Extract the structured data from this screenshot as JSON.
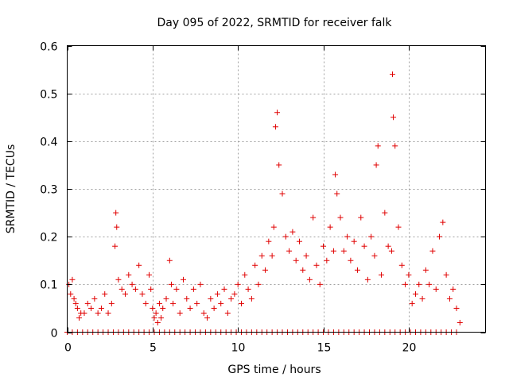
{
  "chart_data": {
    "type": "scatter",
    "title": "Day 095 of 2022, SRMTID for receiver falk",
    "xlabel": "GPS time / hours",
    "ylabel": "SRMTID / TECUs",
    "xlim": [
      0,
      24.5
    ],
    "ylim": [
      0,
      0.6
    ],
    "xticks": [
      0,
      5,
      10,
      15,
      20
    ],
    "xtick_labels": [
      "0",
      "5",
      "10",
      "15",
      "20"
    ],
    "yticks": [
      0,
      0.1,
      0.2,
      0.3,
      0.4,
      0.5,
      0.6
    ],
    "ytick_labels": [
      "0",
      "0.1",
      "0.2",
      "0.3",
      "0.4",
      "0.5",
      "0.6"
    ],
    "grid": true,
    "legend": "none",
    "series": [
      {
        "name": "SRMTID",
        "color": "#e00000",
        "marker": "plus",
        "x": [
          0.1,
          0.2,
          0.3,
          0.4,
          0.5,
          0.6,
          0.7,
          0.8,
          1.0,
          1.2,
          1.4,
          1.6,
          1.8,
          2.0,
          2.2,
          2.4,
          2.6,
          2.8,
          2.85,
          2.9,
          3.0,
          3.2,
          3.4,
          3.6,
          3.8,
          4.0,
          4.2,
          4.4,
          4.6,
          4.8,
          4.9,
          5.0,
          5.1,
          5.2,
          5.3,
          5.4,
          5.5,
          5.6,
          5.8,
          6.0,
          6.1,
          6.2,
          6.4,
          6.6,
          6.8,
          7.0,
          7.2,
          7.4,
          7.6,
          7.8,
          8.0,
          8.2,
          8.4,
          8.6,
          8.8,
          9.0,
          9.2,
          9.4,
          9.6,
          9.8,
          10.0,
          10.2,
          10.4,
          10.6,
          10.8,
          11.0,
          11.2,
          11.4,
          11.6,
          11.8,
          12.0,
          12.1,
          12.2,
          12.3,
          12.4,
          12.6,
          12.8,
          13.0,
          13.2,
          13.4,
          13.6,
          13.8,
          14.0,
          14.2,
          14.4,
          14.6,
          14.8,
          15.0,
          15.2,
          15.4,
          15.6,
          15.7,
          15.8,
          16.0,
          16.2,
          16.4,
          16.6,
          16.8,
          17.0,
          17.2,
          17.4,
          17.6,
          17.8,
          18.0,
          18.1,
          18.2,
          18.4,
          18.6,
          18.8,
          19.0,
          19.05,
          19.1,
          19.2,
          19.4,
          19.6,
          19.8,
          20.0,
          20.2,
          20.4,
          20.6,
          20.8,
          21.0,
          21.2,
          21.4,
          21.6,
          21.8,
          22.0,
          22.2,
          22.4,
          22.6,
          22.8,
          23.0
        ],
        "y": [
          0.1,
          0.08,
          0.11,
          0.07,
          0.06,
          0.05,
          0.03,
          0.04,
          0.04,
          0.06,
          0.05,
          0.07,
          0.04,
          0.05,
          0.08,
          0.04,
          0.06,
          0.18,
          0.25,
          0.22,
          0.11,
          0.09,
          0.08,
          0.12,
          0.1,
          0.09,
          0.14,
          0.08,
          0.06,
          0.12,
          0.09,
          0.05,
          0.03,
          0.04,
          0.02,
          0.06,
          0.03,
          0.05,
          0.07,
          0.15,
          0.1,
          0.06,
          0.09,
          0.04,
          0.11,
          0.07,
          0.05,
          0.09,
          0.06,
          0.1,
          0.04,
          0.03,
          0.07,
          0.05,
          0.08,
          0.06,
          0.09,
          0.04,
          0.07,
          0.08,
          0.1,
          0.06,
          0.12,
          0.09,
          0.07,
          0.14,
          0.1,
          0.16,
          0.13,
          0.19,
          0.16,
          0.22,
          0.43,
          0.46,
          0.35,
          0.29,
          0.2,
          0.17,
          0.21,
          0.15,
          0.19,
          0.13,
          0.16,
          0.11,
          0.24,
          0.14,
          0.1,
          0.18,
          0.15,
          0.22,
          0.17,
          0.33,
          0.29,
          0.24,
          0.17,
          0.2,
          0.15,
          0.19,
          0.13,
          0.24,
          0.18,
          0.11,
          0.2,
          0.16,
          0.35,
          0.39,
          0.12,
          0.25,
          0.18,
          0.17,
          0.54,
          0.45,
          0.39,
          0.22,
          0.14,
          0.1,
          0.12,
          0.06,
          0.08,
          0.1,
          0.07,
          0.13,
          0.1,
          0.17,
          0.09,
          0.2,
          0.23,
          0.12,
          0.07,
          0.09,
          0.05,
          0.02
        ],
        "zero_x": [
          0.0,
          0.3,
          0.6,
          0.9,
          1.2,
          1.5,
          1.8,
          2.1,
          2.4,
          2.7,
          3.0,
          3.3,
          3.6,
          3.9,
          4.2,
          4.5,
          4.8,
          5.1,
          5.4,
          5.7,
          6.0,
          6.3,
          6.6,
          6.9,
          7.2,
          7.5,
          7.8,
          8.1,
          8.4,
          8.7,
          9.0,
          9.3,
          9.6,
          9.9,
          10.2,
          10.5,
          10.8,
          11.1,
          11.4,
          11.7,
          12.0,
          12.3,
          12.6,
          12.9,
          13.2,
          13.5,
          13.8,
          14.1,
          14.4,
          14.7,
          15.0,
          15.3,
          15.6,
          15.9,
          16.2,
          16.5,
          16.8,
          17.1,
          17.4,
          17.7,
          18.0,
          18.3,
          18.6,
          18.9,
          19.2,
          19.5,
          19.8,
          20.1,
          20.4,
          20.7,
          21.0,
          21.3,
          21.6,
          21.9,
          22.2,
          22.5,
          22.8
        ]
      }
    ]
  }
}
